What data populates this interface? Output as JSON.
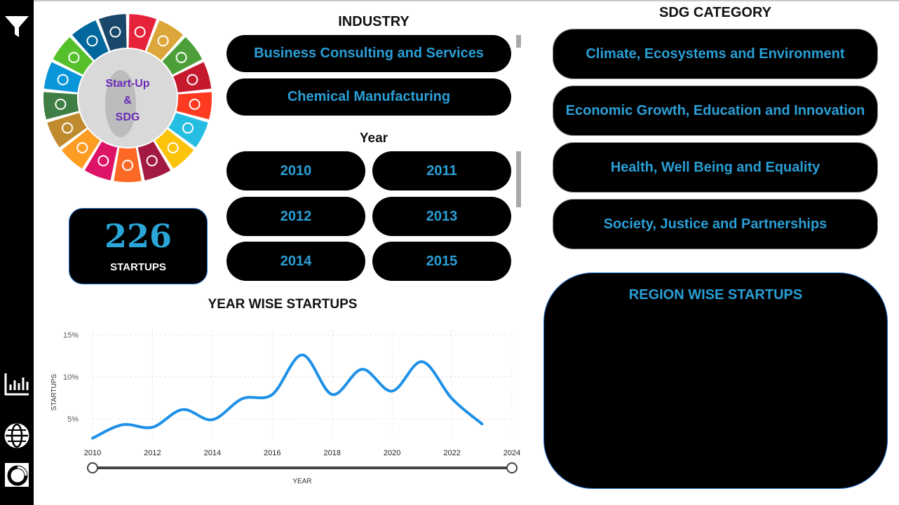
{
  "logo": {
    "line1": "Start-Up",
    "line2": "&",
    "line3": "SDG"
  },
  "kpi": {
    "value": "226",
    "label": "STARTUPS"
  },
  "industry": {
    "title": "INDUSTRY",
    "items": [
      "Business Consulting and Services",
      "Chemical Manufacturing"
    ]
  },
  "year_filter": {
    "title": "Year",
    "items": [
      "2010",
      "2011",
      "2012",
      "2013",
      "2014",
      "2015"
    ]
  },
  "sdg": {
    "title": "SDG CATEGORY",
    "items": [
      "Climate, Ecosystems and Environment",
      "Economic Growth, Education and Innovation",
      "Health, Well Being and Equality",
      "Society, Justice and Partnerships"
    ]
  },
  "region": {
    "title": "REGION WISE STARTUPS"
  },
  "colors": {
    "accent": "#2a9fd6",
    "line": "#1e90e8",
    "panel": "#000000"
  },
  "icons": [
    "filter-icon",
    "bar-chart-icon",
    "globe-icon",
    "donut-chart-icon"
  ],
  "chart_data": {
    "type": "line",
    "title": "YEAR WISE STARTUPS",
    "xlabel": "YEAR",
    "ylabel": "STARTUPS",
    "x": [
      2010,
      2011,
      2012,
      2013,
      2014,
      2015,
      2016,
      2017,
      2018,
      2019,
      2020,
      2021,
      2022,
      2023
    ],
    "y": [
      2.7,
      4.3,
      4.0,
      6.1,
      4.9,
      7.4,
      7.9,
      12.6,
      7.9,
      10.9,
      8.3,
      11.8,
      7.4,
      4.4
    ],
    "xlim": [
      2010,
      2024
    ],
    "xticks": [
      2010,
      2012,
      2014,
      2016,
      2018,
      2020,
      2022,
      2024
    ],
    "ylim": [
      2.5,
      15.5
    ],
    "yticks": [
      5,
      10,
      15
    ],
    "ytick_labels": [
      "5%",
      "10%",
      "15%"
    ],
    "grid": true
  }
}
